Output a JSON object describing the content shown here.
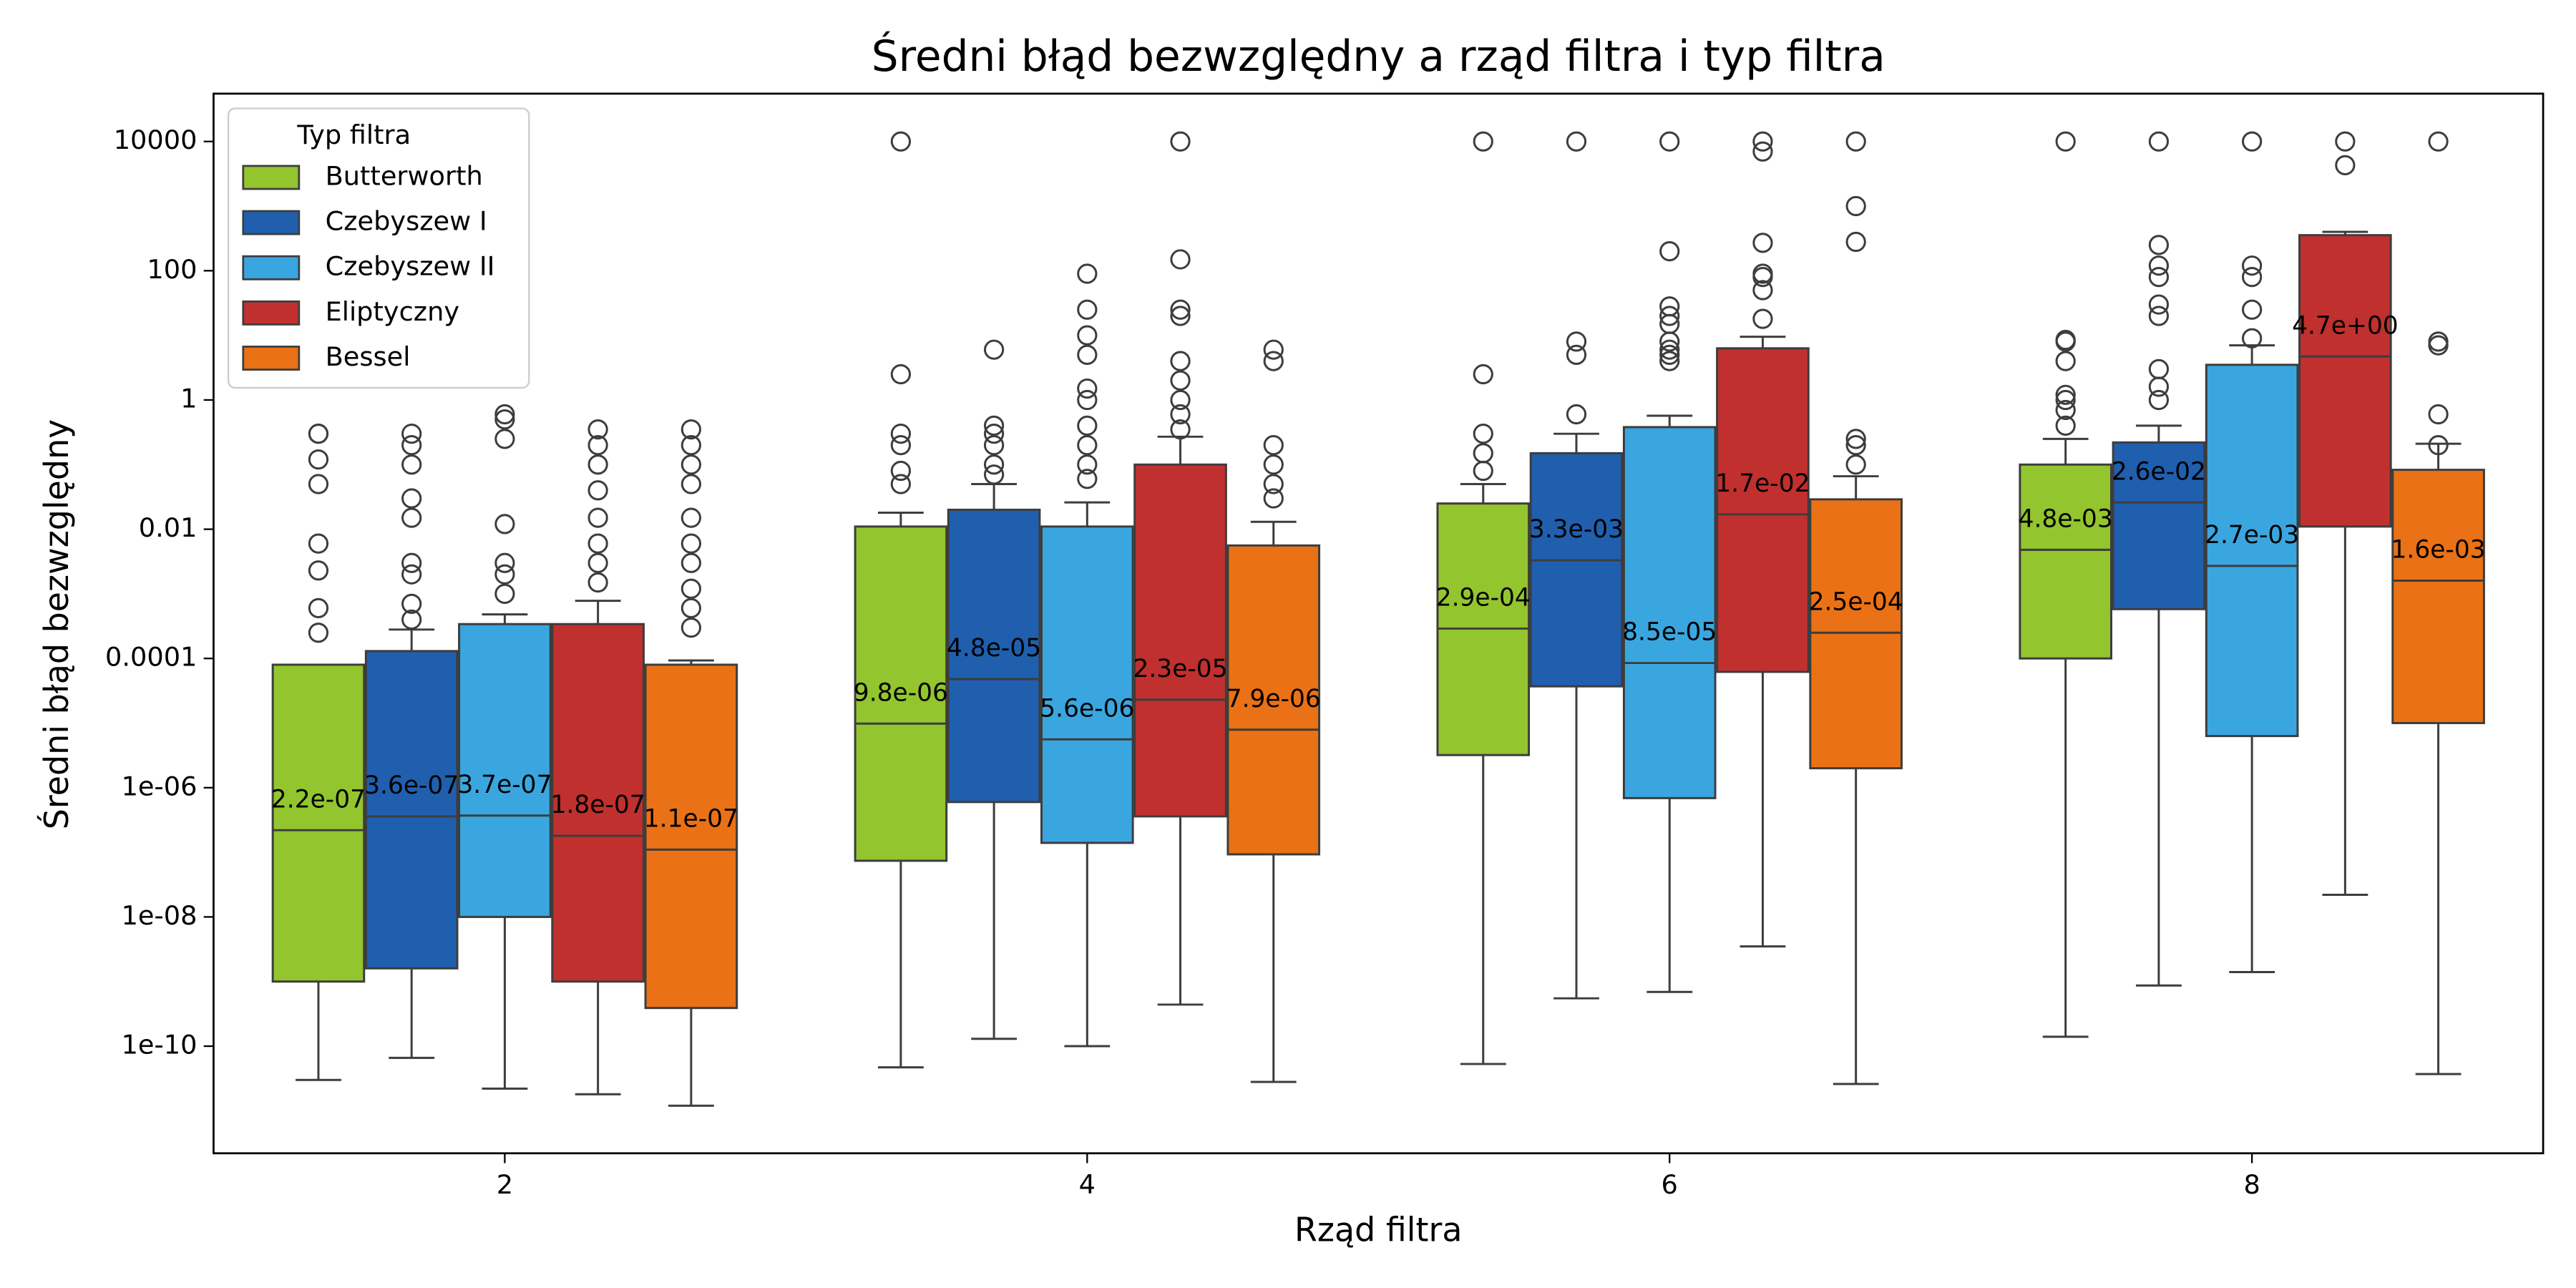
{
  "chart_data": {
    "type": "box",
    "title": "Średni błąd bezwzględny a rząd filtra i typ filtra",
    "xlabel": "Rząd filtra",
    "ylabel": "Średni błąd bezwzględny",
    "yscale": "log",
    "ylim": [
      2.2e-12,
      55000
    ],
    "yticks": [
      10000,
      100,
      1,
      0.01,
      0.0001,
      {
        "value": 1e-06,
        "label": "1e-06"
      },
      {
        "value": 1e-08,
        "label": "1e-08"
      },
      {
        "value": 1e-10,
        "label": "1e-10"
      }
    ],
    "categories": [
      "2",
      "4",
      "6",
      "8"
    ],
    "legend": {
      "title": "Typ filtra",
      "loc": "upper left"
    },
    "series": [
      {
        "name": "Butterworth",
        "color": "#93c52e",
        "values": [
          2.2e-07,
          9.8e-06,
          0.00029,
          0.0048
        ],
        "value_labels": [
          "2.2e-07",
          "9.8e-06",
          "2.9e-04",
          "4.8e-03"
        ],
        "whislo": [
          3e-11,
          4.7e-11,
          5.3e-11,
          1.4e-10
        ],
        "q1": [
          1e-09,
          7.4e-08,
          3.2e-06,
          0.0001
        ],
        "q3": [
          8e-05,
          0.011,
          0.025,
          0.1
        ],
        "whishi": [
          8e-05,
          0.018,
          0.05,
          0.25
        ],
        "fliers": [
          [
            0.00025,
            0.0006,
            0.0023,
            0.006,
            0.05,
            0.12,
            0.3,
            0.3
          ],
          [
            0.05,
            0.08,
            0.2,
            0.3,
            2.5,
            10000
          ],
          [
            0.08,
            0.15,
            0.3,
            2.5,
            10000
          ],
          [
            0.4,
            0.7,
            1,
            1.2,
            4,
            8,
            8.5,
            10000
          ]
        ]
      },
      {
        "name": "Czebyszew I",
        "color": "#1f5fae",
        "values": [
          3.6e-07,
          4.8e-05,
          0.0033,
          0.026
        ],
        "value_labels": [
          "3.6e-07",
          "4.8e-05",
          "3.3e-03",
          "2.6e-02"
        ],
        "whislo": [
          6.6e-11,
          1.3e-10,
          5.5e-10,
          8.7e-10
        ],
        "q1": [
          1.6e-09,
          6e-07,
          3.7e-05,
          0.00058
        ],
        "q3": [
          0.00013,
          0.02,
          0.15,
          0.22
        ],
        "whishi": [
          0.00028,
          0.05,
          0.3,
          0.4
        ],
        "fliers": [
          [
            0.0004,
            0.0007,
            0.002,
            0.003,
            0.015,
            0.03,
            0.1,
            0.2,
            0.3
          ],
          [
            0.07,
            0.1,
            0.2,
            0.3,
            0.4,
            6
          ],
          [
            0.6,
            5,
            8,
            10000
          ],
          [
            1,
            1.6,
            3,
            20,
            30,
            80,
            120,
            250,
            10000
          ]
        ]
      },
      {
        "name": "Czebyszew II",
        "color": "#3aa6e0",
        "values": [
          3.7e-07,
          5.6e-06,
          8.5e-05,
          0.0027
        ],
        "value_labels": [
          "3.7e-07",
          "5.6e-06",
          "8.5e-05",
          "2.7e-03"
        ],
        "whislo": [
          2.2e-11,
          1e-10,
          6.9e-10,
          1.4e-09
        ],
        "q1": [
          1e-08,
          1.4e-07,
          6.9e-07,
          6.3e-06
        ],
        "q3": [
          0.00034,
          0.011,
          0.38,
          3.5
        ],
        "whishi": [
          0.00048,
          0.026,
          0.57,
          7
        ],
        "fliers": [
          [
            0.001,
            0.002,
            0.003,
            0.012,
            0.25,
            0.5,
            0.6
          ],
          [
            0.06,
            0.1,
            0.2,
            0.4,
            1,
            1.5,
            5,
            10,
            25,
            90
          ],
          [
            4,
            5,
            6,
            8,
            15,
            20,
            28,
            200,
            10000
          ],
          [
            9,
            25,
            80,
            120,
            10000
          ]
        ]
      },
      {
        "name": "Eliptyczny",
        "color": "#c0302e",
        "values": [
          1.8e-07,
          2.3e-05,
          0.017,
          4.7
        ],
        "value_labels": [
          "1.8e-07",
          "2.3e-05",
          "1.7e-02",
          "4.7e+00"
        ],
        "whislo": [
          1.8e-11,
          4.4e-10,
          3.5e-09,
          2.2e-08
        ],
        "q1": [
          1e-09,
          3.6e-07,
          6.2e-05,
          0.011
        ],
        "q3": [
          0.00034,
          0.1,
          6.3,
          355
        ],
        "whishi": [
          0.00078,
          0.27,
          9.5,
          400
        ],
        "fliers": [
          [
            0.0015,
            0.003,
            0.006,
            0.015,
            0.04,
            0.1,
            0.2,
            0.35
          ],
          [
            0.35,
            0.6,
            1,
            2,
            4,
            20,
            25,
            150,
            10000
          ],
          [
            18,
            50,
            80,
            90,
            270,
            7000,
            10000
          ],
          [
            4300,
            10000
          ]
        ]
      },
      {
        "name": "Bessel",
        "color": "#ea7115",
        "values": [
          1.1e-07,
          7.9e-06,
          0.00025,
          0.0016
        ],
        "value_labels": [
          "1.1e-07",
          "7.9e-06",
          "2.5e-04",
          "1.6e-03"
        ],
        "whislo": [
          1.2e-11,
          2.8e-11,
          2.6e-11,
          3.7e-11
        ],
        "q1": [
          3.9e-10,
          9.3e-08,
          2e-06,
          1e-05
        ],
        "q3": [
          8e-05,
          0.0056,
          0.029,
          0.083
        ],
        "whishi": [
          9.3e-05,
          0.013,
          0.066,
          0.21
        ],
        "fliers": [
          [
            0.0003,
            0.0006,
            0.0012,
            0.003,
            0.006,
            0.015,
            0.05,
            0.1,
            0.2,
            0.35
          ],
          [
            0.03,
            0.05,
            0.1,
            0.2,
            6,
            4
          ],
          [
            0.1,
            0.2,
            0.25,
            280,
            1000,
            10000
          ],
          [
            0.2,
            0.6,
            7,
            8,
            10000
          ]
        ]
      }
    ]
  }
}
